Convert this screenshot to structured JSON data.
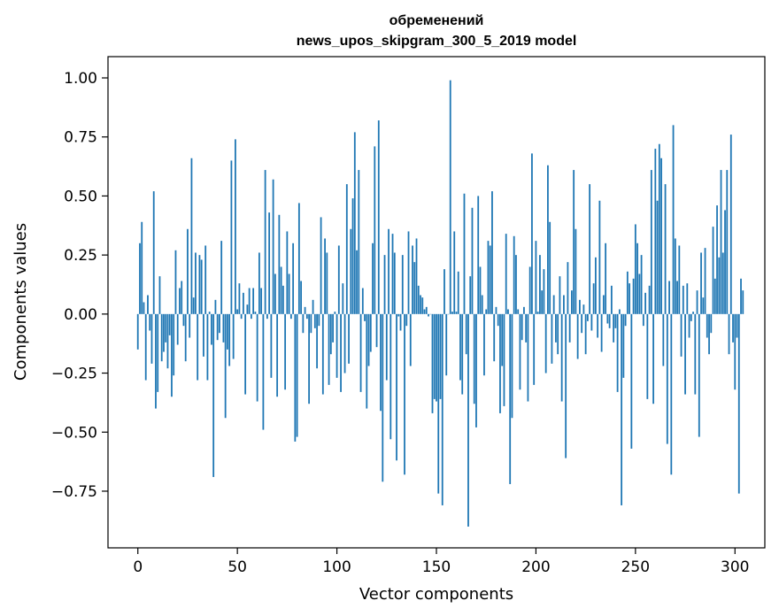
{
  "title_line1": "обременений",
  "title_line2": "news_upos_skipgram_300_5_2019 model",
  "chart_data": {
    "type": "bar",
    "title": "обременений\nnews_upos_skipgram_300_5_2019 model",
    "xlabel": "Vector components",
    "ylabel": "Components values",
    "xlim": [
      -15,
      315
    ],
    "ylim": [
      -0.99,
      1.09
    ],
    "x_ticks": [
      0,
      50,
      100,
      150,
      200,
      250,
      300
    ],
    "x_tick_labels": [
      "0",
      "50",
      "100",
      "150",
      "200",
      "250",
      "300"
    ],
    "y_ticks": [
      -0.75,
      -0.5,
      -0.25,
      0.0,
      0.25,
      0.5,
      0.75,
      1.0
    ],
    "y_tick_labels": [
      "−0.75",
      "−0.50",
      "−0.25",
      "0.00",
      "0.25",
      "0.50",
      "0.75",
      "1.00"
    ],
    "bar_color": "#1f77b4",
    "grid": false,
    "values": [
      -0.15,
      0.3,
      0.39,
      0.05,
      -0.28,
      0.08,
      -0.07,
      -0.21,
      0.52,
      -0.4,
      -0.33,
      0.16,
      -0.2,
      -0.16,
      -0.12,
      -0.23,
      -0.09,
      -0.35,
      -0.26,
      0.27,
      -0.13,
      0.11,
      0.14,
      -0.05,
      -0.2,
      0.36,
      -0.1,
      0.66,
      0.07,
      0.26,
      -0.28,
      0.25,
      0.23,
      -0.18,
      0.29,
      -0.28,
      0.01,
      -0.13,
      -0.69,
      0.06,
      -0.11,
      -0.08,
      0.31,
      -0.12,
      -0.44,
      -0.15,
      -0.22,
      0.65,
      -0.19,
      0.74,
      0.02,
      0.13,
      -0.02,
      0.09,
      -0.34,
      0.04,
      0.11,
      -0.02,
      0.11,
      0.01,
      -0.37,
      0.26,
      0.11,
      -0.49,
      0.61,
      -0.02,
      0.43,
      -0.27,
      0.57,
      0.17,
      -0.35,
      0.42,
      0.2,
      0.12,
      -0.32,
      0.35,
      0.17,
      -0.02,
      0.3,
      -0.54,
      -0.52,
      0.47,
      0.14,
      -0.08,
      0.03,
      -0.02,
      -0.38,
      -0.08,
      0.06,
      -0.06,
      -0.23,
      -0.05,
      0.41,
      -0.34,
      0.32,
      0.26,
      -0.3,
      -0.17,
      -0.12,
      0.01,
      -0.27,
      0.29,
      -0.33,
      0.13,
      -0.25,
      0.55,
      -0.21,
      0.36,
      0.49,
      0.77,
      0.27,
      0.61,
      -0.33,
      0.11,
      -0.03,
      -0.4,
      -0.22,
      -0.16,
      0.3,
      0.71,
      -0.14,
      0.82,
      -0.41,
      -0.71,
      0.25,
      -0.28,
      0.36,
      -0.53,
      0.34,
      0.26,
      -0.62,
      -0.01,
      -0.07,
      0.25,
      -0.68,
      -0.05,
      0.35,
      -0.22,
      0.29,
      0.22,
      0.32,
      0.12,
      0.08,
      0.07,
      0.02,
      0.03,
      -0.01,
      0.0,
      -0.42,
      -0.36,
      -0.37,
      -0.76,
      -0.36,
      -0.81,
      0.19,
      -0.26,
      0.0,
      0.99,
      0.01,
      0.35,
      0.01,
      0.18,
      -0.28,
      -0.34,
      0.51,
      -0.17,
      -0.9,
      0.16,
      0.45,
      -0.38,
      -0.48,
      0.5,
      0.2,
      0.08,
      -0.26,
      0.02,
      0.31,
      0.29,
      0.52,
      -0.2,
      0.03,
      -0.05,
      -0.42,
      -0.22,
      -0.39,
      0.34,
      0.02,
      -0.72,
      -0.44,
      0.33,
      0.25,
      0.02,
      -0.32,
      -0.11,
      0.03,
      -0.12,
      -0.37,
      0.2,
      0.68,
      -0.3,
      0.31,
      0.01,
      0.25,
      0.1,
      0.19,
      -0.25,
      0.63,
      0.39,
      -0.21,
      0.08,
      -0.12,
      -0.17,
      0.16,
      -0.37,
      0.08,
      -0.61,
      0.22,
      -0.12,
      0.1,
      0.61,
      0.36,
      -0.19,
      0.06,
      -0.08,
      0.04,
      -0.17,
      -0.03,
      0.55,
      -0.07,
      0.13,
      0.24,
      -0.1,
      0.48,
      -0.16,
      0.08,
      0.3,
      -0.04,
      -0.06,
      0.12,
      -0.12,
      -0.06,
      -0.33,
      0.02,
      -0.81,
      -0.27,
      -0.05,
      0.18,
      0.13,
      -0.57,
      0.15,
      0.38,
      0.3,
      0.17,
      0.25,
      -0.05,
      0.09,
      -0.36,
      0.12,
      0.61,
      -0.38,
      0.7,
      0.48,
      0.72,
      0.66,
      -0.22,
      0.55,
      -0.55,
      0.14,
      -0.68,
      0.8,
      0.32,
      0.14,
      0.29,
      -0.18,
      0.12,
      -0.34,
      0.13,
      -0.1,
      -0.03,
      0.01,
      -0.34,
      0.1,
      -0.52,
      0.26,
      0.07,
      0.28,
      -0.1,
      -0.17,
      -0.08,
      0.37,
      0.15,
      0.46,
      0.24,
      0.61,
      0.26,
      0.44,
      0.61,
      -0.17,
      0.76,
      -0.12,
      -0.32,
      -0.1,
      -0.76,
      0.15,
      0.1
    ]
  }
}
